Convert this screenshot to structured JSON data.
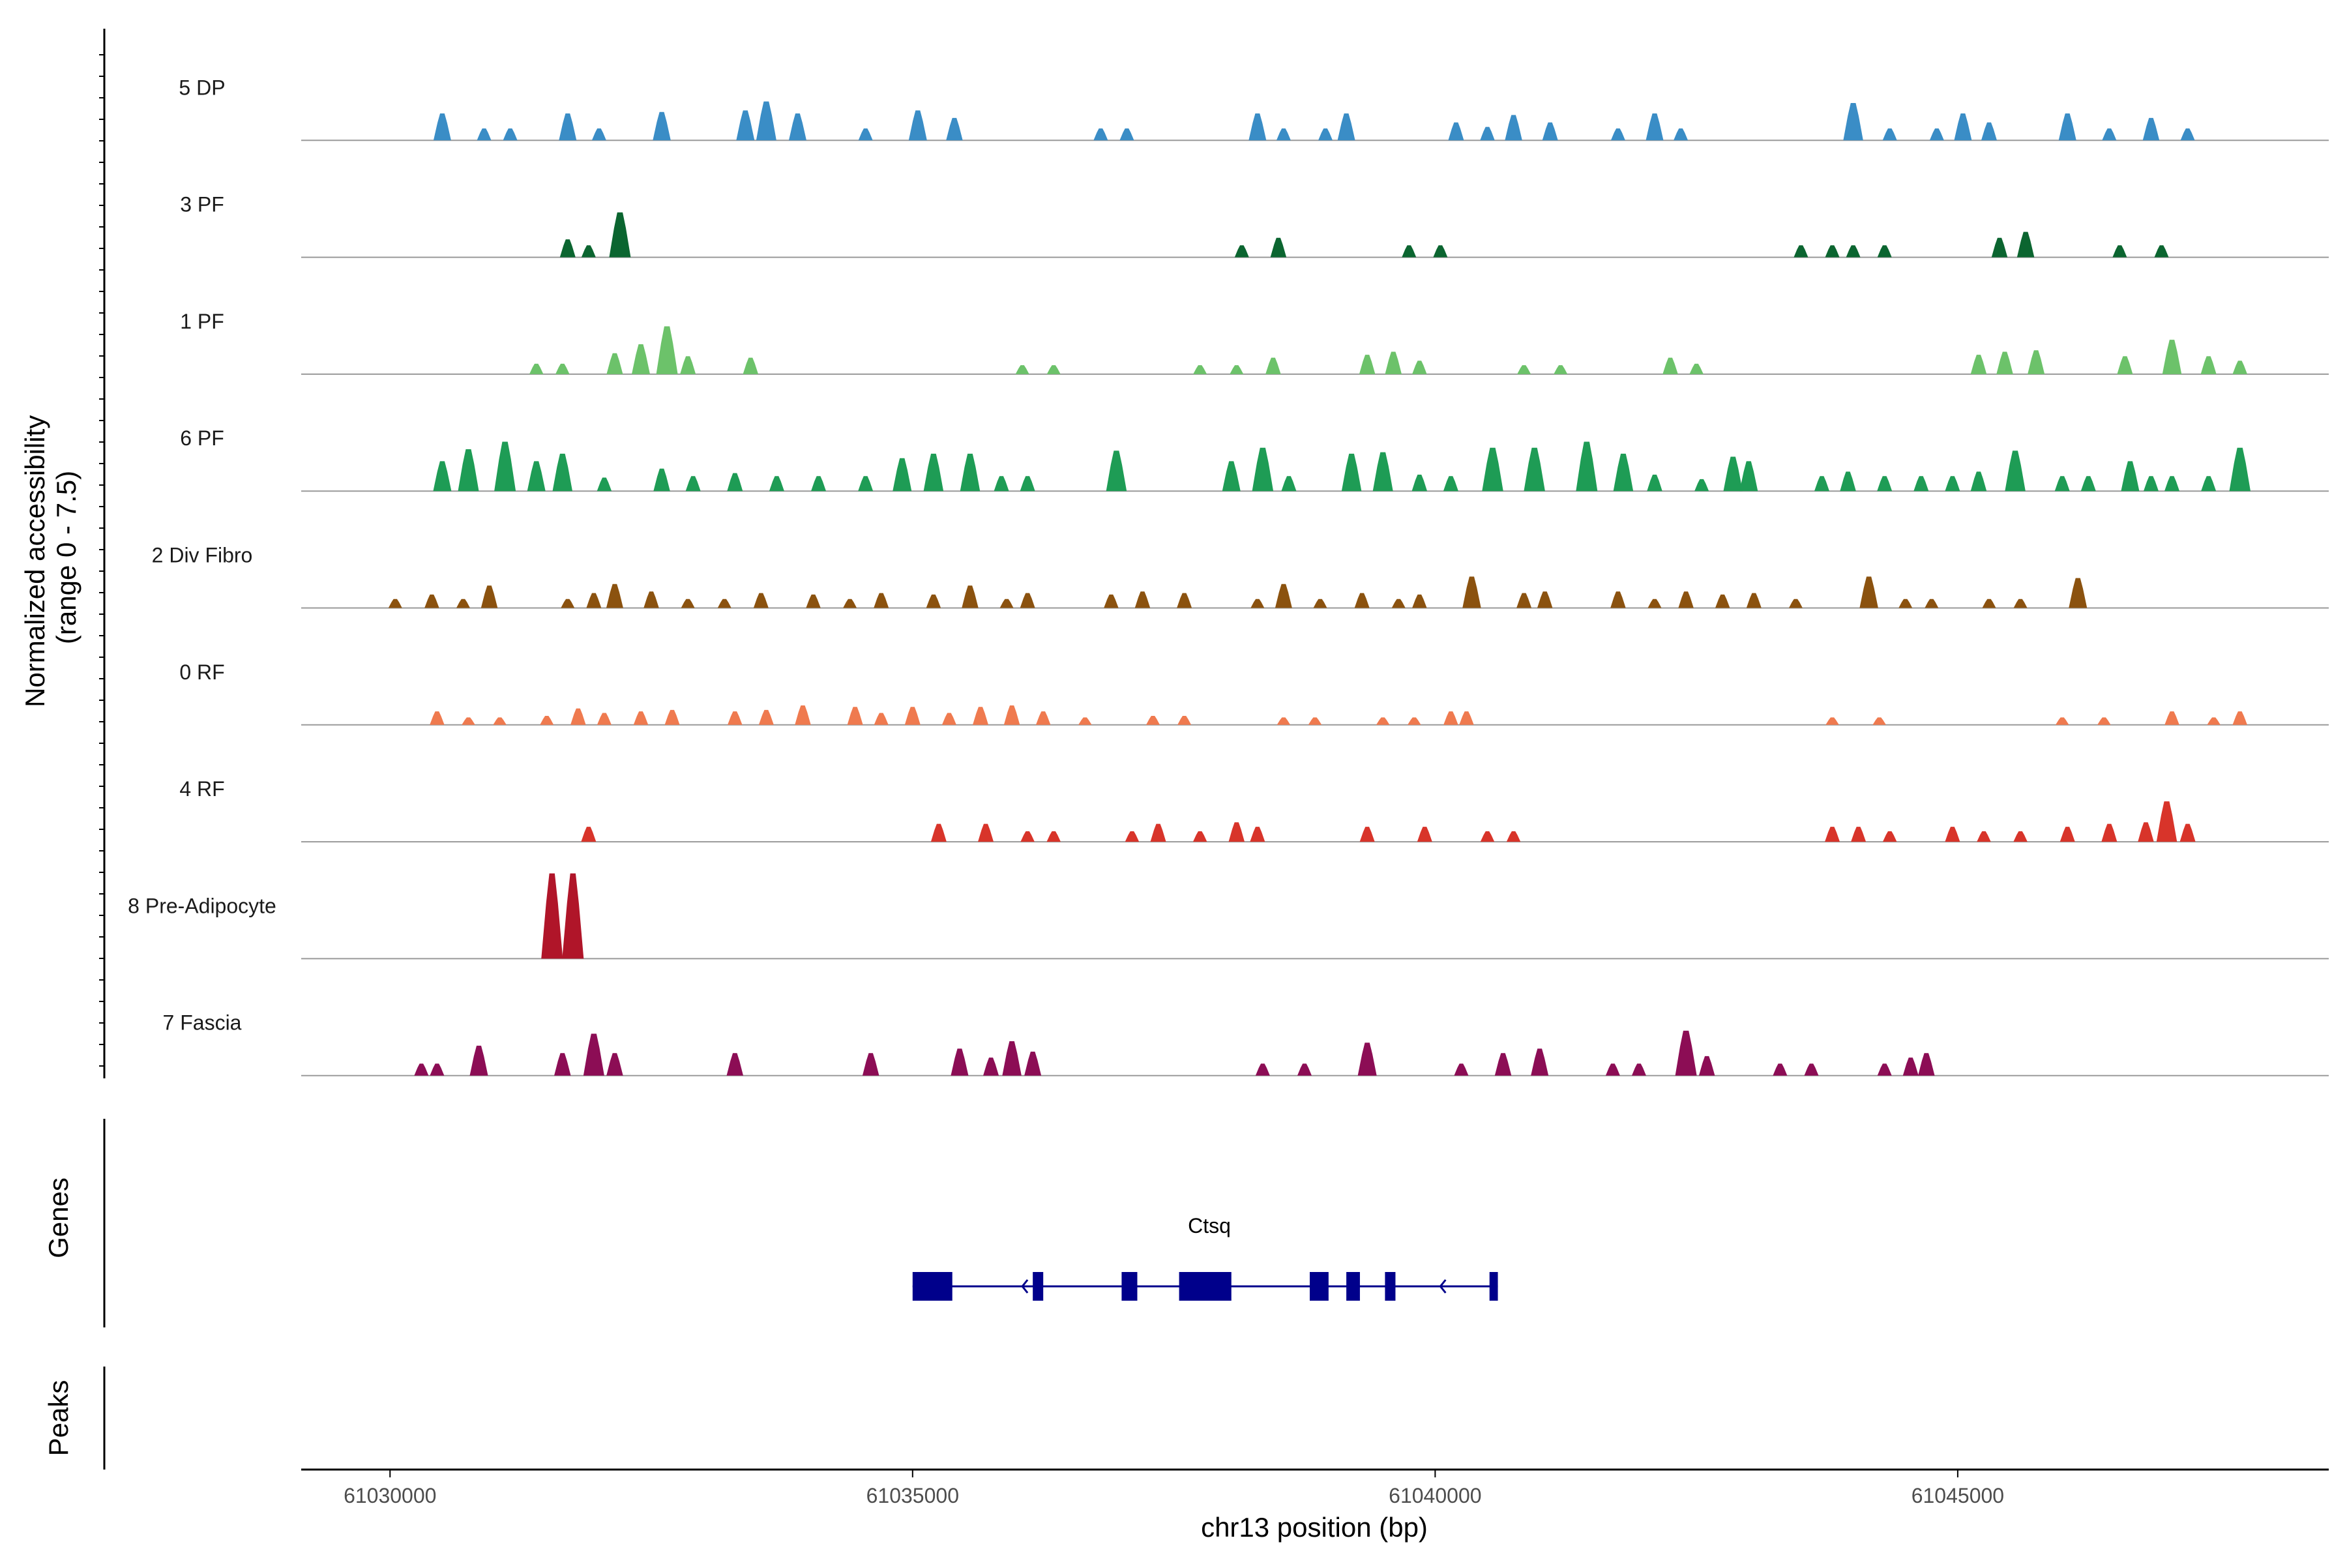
{
  "colors": {
    "5 DP": "#3a8dc6",
    "3 PF": "#0b6530",
    "1 PF": "#6cc26a",
    "6 PF": "#1e9c55",
    "2 Div Fibro": "#8b520f",
    "0 RF": "#ef7a4f",
    "4 RF": "#d8342a",
    "8 Pre-Adipocyte": "#b01529",
    "7 Fascia": "#8c0d55",
    "gene": "#00008b",
    "baseline": "#9a9a9a",
    "axis": "#000000"
  },
  "chart_data": {
    "type": "area",
    "title": "",
    "ylabel_line1": "Normalized accessibility",
    "ylabel_line2": "(range 0 - 7.5)",
    "ylim": [
      0,
      7.5
    ],
    "xlabel": "chr13 position (bp)",
    "xlim": [
      61029150,
      61048550
    ],
    "xticks": [
      61030000,
      61035000,
      61040000,
      61045000
    ],
    "xtick_labels": [
      "61030000",
      "61035000",
      "61040000",
      "61045000"
    ],
    "panel_labels": {
      "genes": "Genes",
      "peaks": "Peaks"
    },
    "tracks": [
      {
        "name": "5 DP",
        "peaks": [
          [
            61030500,
            1.8
          ],
          [
            61030900,
            0.8
          ],
          [
            61031150,
            0.8
          ],
          [
            61031700,
            1.8
          ],
          [
            61032000,
            0.8
          ],
          [
            61032600,
            1.9
          ],
          [
            61033400,
            2.0
          ],
          [
            61033600,
            2.6
          ],
          [
            61033900,
            1.8
          ],
          [
            61034550,
            0.8
          ],
          [
            61035050,
            2.0
          ],
          [
            61035400,
            1.5
          ],
          [
            61036800,
            0.8
          ],
          [
            61037050,
            0.8
          ],
          [
            61038300,
            1.8
          ],
          [
            61038550,
            0.8
          ],
          [
            61038950,
            0.8
          ],
          [
            61039150,
            1.8
          ],
          [
            61040200,
            1.2
          ],
          [
            61040500,
            0.9
          ],
          [
            61040750,
            1.7
          ],
          [
            61041100,
            1.2
          ],
          [
            61041750,
            0.8
          ],
          [
            61042100,
            1.8
          ],
          [
            61042350,
            0.8
          ],
          [
            61044000,
            2.5
          ],
          [
            61044350,
            0.8
          ],
          [
            61044800,
            0.8
          ],
          [
            61045050,
            1.8
          ],
          [
            61045300,
            1.2
          ],
          [
            61046050,
            1.8
          ],
          [
            61046450,
            0.8
          ],
          [
            61046850,
            1.5
          ],
          [
            61047200,
            0.8
          ]
        ]
      },
      {
        "name": "3 PF",
        "peaks": [
          [
            61031700,
            1.2
          ],
          [
            61031900,
            0.8
          ],
          [
            61032200,
            3.0
          ],
          [
            61038150,
            0.8
          ],
          [
            61038500,
            1.3
          ],
          [
            61039750,
            0.8
          ],
          [
            61040050,
            0.8
          ],
          [
            61043500,
            0.8
          ],
          [
            61043800,
            0.8
          ],
          [
            61044000,
            0.8
          ],
          [
            61044300,
            0.8
          ],
          [
            61045400,
            1.3
          ],
          [
            61045650,
            1.7
          ],
          [
            61046550,
            0.8
          ],
          [
            61046950,
            0.8
          ]
        ]
      },
      {
        "name": "1 PF",
        "peaks": [
          [
            61031400,
            0.7
          ],
          [
            61031650,
            0.7
          ],
          [
            61032150,
            1.4
          ],
          [
            61032400,
            2.0
          ],
          [
            61032650,
            3.2
          ],
          [
            61032850,
            1.2
          ],
          [
            61033450,
            1.1
          ],
          [
            61036050,
            0.6
          ],
          [
            61036350,
            0.6
          ],
          [
            61037750,
            0.6
          ],
          [
            61038100,
            0.6
          ],
          [
            61038450,
            1.1
          ],
          [
            61039350,
            1.3
          ],
          [
            61039600,
            1.5
          ],
          [
            61039850,
            0.9
          ],
          [
            61040850,
            0.6
          ],
          [
            61041200,
            0.6
          ],
          [
            61042250,
            1.1
          ],
          [
            61042500,
            0.7
          ],
          [
            61045200,
            1.3
          ],
          [
            61045450,
            1.5
          ],
          [
            61045750,
            1.6
          ],
          [
            61046600,
            1.2
          ],
          [
            61047050,
            2.3
          ],
          [
            61047400,
            1.2
          ],
          [
            61047700,
            0.9
          ]
        ]
      },
      {
        "name": "6 PF",
        "peaks": [
          [
            61030500,
            2.0
          ],
          [
            61030750,
            2.8
          ],
          [
            61031100,
            3.3
          ],
          [
            61031400,
            2.0
          ],
          [
            61031650,
            2.5
          ],
          [
            61032050,
            0.9
          ],
          [
            61032600,
            1.5
          ],
          [
            61032900,
            1.0
          ],
          [
            61033300,
            1.2
          ],
          [
            61033700,
            1.0
          ],
          [
            61034100,
            1.0
          ],
          [
            61034550,
            1.0
          ],
          [
            61034900,
            2.2
          ],
          [
            61035200,
            2.5
          ],
          [
            61035550,
            2.5
          ],
          [
            61035850,
            1.0
          ],
          [
            61036100,
            1.0
          ],
          [
            61036950,
            2.7
          ],
          [
            61038050,
            2.0
          ],
          [
            61038350,
            2.9
          ],
          [
            61038600,
            1.0
          ],
          [
            61039200,
            2.5
          ],
          [
            61039500,
            2.6
          ],
          [
            61039850,
            1.1
          ],
          [
            61040150,
            1.0
          ],
          [
            61040550,
            2.9
          ],
          [
            61040950,
            2.9
          ],
          [
            61041450,
            3.3
          ],
          [
            61041800,
            2.5
          ],
          [
            61042100,
            1.1
          ],
          [
            61042550,
            0.8
          ],
          [
            61042850,
            2.3
          ],
          [
            61043000,
            2.0
          ],
          [
            61043700,
            1.0
          ],
          [
            61043950,
            1.3
          ],
          [
            61044300,
            1.0
          ],
          [
            61044650,
            1.0
          ],
          [
            61044950,
            1.0
          ],
          [
            61045200,
            1.3
          ],
          [
            61045550,
            2.7
          ],
          [
            61046000,
            1.0
          ],
          [
            61046250,
            1.0
          ],
          [
            61046650,
            2.0
          ],
          [
            61046850,
            1.0
          ],
          [
            61047050,
            1.0
          ],
          [
            61047400,
            1.0
          ],
          [
            61047700,
            2.9
          ]
        ]
      },
      {
        "name": "2 Div Fibro",
        "peaks": [
          [
            61030050,
            0.6
          ],
          [
            61030400,
            0.9
          ],
          [
            61030700,
            0.6
          ],
          [
            61030950,
            1.5
          ],
          [
            61031700,
            0.6
          ],
          [
            61031950,
            1.0
          ],
          [
            61032150,
            1.6
          ],
          [
            61032500,
            1.1
          ],
          [
            61032850,
            0.6
          ],
          [
            61033200,
            0.6
          ],
          [
            61033550,
            1.0
          ],
          [
            61034050,
            0.9
          ],
          [
            61034400,
            0.6
          ],
          [
            61034700,
            1.0
          ],
          [
            61035200,
            0.9
          ],
          [
            61035550,
            1.5
          ],
          [
            61035900,
            0.6
          ],
          [
            61036100,
            1.0
          ],
          [
            61036900,
            0.9
          ],
          [
            61037200,
            1.1
          ],
          [
            61037600,
            1.0
          ],
          [
            61038300,
            0.6
          ],
          [
            61038550,
            1.6
          ],
          [
            61038900,
            0.6
          ],
          [
            61039300,
            1.0
          ],
          [
            61039650,
            0.6
          ],
          [
            61039850,
            0.9
          ],
          [
            61040350,
            2.1
          ],
          [
            61040850,
            1.0
          ],
          [
            61041050,
            1.1
          ],
          [
            61041750,
            1.1
          ],
          [
            61042100,
            0.6
          ],
          [
            61042400,
            1.1
          ],
          [
            61042750,
            0.9
          ],
          [
            61043050,
            1.0
          ],
          [
            61043450,
            0.6
          ],
          [
            61044150,
            2.1
          ],
          [
            61044500,
            0.6
          ],
          [
            61044750,
            0.6
          ],
          [
            61045300,
            0.6
          ],
          [
            61045600,
            0.6
          ],
          [
            61046150,
            2.0
          ]
        ]
      },
      {
        "name": "0 RF",
        "peaks": [
          [
            61030450,
            0.9
          ],
          [
            61030750,
            0.5
          ],
          [
            61031050,
            0.5
          ],
          [
            61031500,
            0.6
          ],
          [
            61031800,
            1.1
          ],
          [
            61032050,
            0.8
          ],
          [
            61032400,
            0.9
          ],
          [
            61032700,
            1.0
          ],
          [
            61033300,
            0.9
          ],
          [
            61033600,
            1.0
          ],
          [
            61033950,
            1.3
          ],
          [
            61034450,
            1.2
          ],
          [
            61034700,
            0.8
          ],
          [
            61035000,
            1.2
          ],
          [
            61035350,
            0.8
          ],
          [
            61035650,
            1.2
          ],
          [
            61035950,
            1.3
          ],
          [
            61036250,
            0.9
          ],
          [
            61036650,
            0.5
          ],
          [
            61037300,
            0.6
          ],
          [
            61037600,
            0.6
          ],
          [
            61038550,
            0.5
          ],
          [
            61038850,
            0.5
          ],
          [
            61039500,
            0.5
          ],
          [
            61039800,
            0.5
          ],
          [
            61040150,
            0.9
          ],
          [
            61040300,
            0.9
          ],
          [
            61043800,
            0.5
          ],
          [
            61044250,
            0.5
          ],
          [
            61046000,
            0.5
          ],
          [
            61046400,
            0.5
          ],
          [
            61047050,
            0.9
          ],
          [
            61047450,
            0.5
          ],
          [
            61047700,
            0.9
          ]
        ]
      },
      {
        "name": "4 RF",
        "peaks": [
          [
            61031900,
            1.0
          ],
          [
            61035250,
            1.2
          ],
          [
            61035700,
            1.2
          ],
          [
            61036100,
            0.7
          ],
          [
            61036350,
            0.7
          ],
          [
            61037100,
            0.7
          ],
          [
            61037350,
            1.2
          ],
          [
            61037750,
            0.7
          ],
          [
            61038100,
            1.3
          ],
          [
            61038300,
            1.0
          ],
          [
            61039350,
            1.0
          ],
          [
            61039900,
            1.0
          ],
          [
            61040500,
            0.7
          ],
          [
            61040750,
            0.7
          ],
          [
            61043800,
            1.0
          ],
          [
            61044050,
            1.0
          ],
          [
            61044350,
            0.7
          ],
          [
            61044950,
            1.0
          ],
          [
            61045250,
            0.7
          ],
          [
            61045600,
            0.7
          ],
          [
            61046050,
            1.0
          ],
          [
            61046450,
            1.2
          ],
          [
            61046800,
            1.3
          ],
          [
            61047000,
            2.7
          ],
          [
            61047200,
            1.2
          ]
        ]
      },
      {
        "name": "8 Pre-Adipocyte",
        "peaks": [
          [
            61031550,
            5.7
          ],
          [
            61031750,
            5.7
          ]
        ]
      },
      {
        "name": "7 Fascia",
        "peaks": [
          [
            61030300,
            0.8
          ],
          [
            61030450,
            0.8
          ],
          [
            61030850,
            2.0
          ],
          [
            61031650,
            1.5
          ],
          [
            61031950,
            2.8
          ],
          [
            61032150,
            1.5
          ],
          [
            61033300,
            1.5
          ],
          [
            61034600,
            1.5
          ],
          [
            61035450,
            1.8
          ],
          [
            61035750,
            1.2
          ],
          [
            61035950,
            2.3
          ],
          [
            61036150,
            1.6
          ],
          [
            61038350,
            0.8
          ],
          [
            61038750,
            0.8
          ],
          [
            61039350,
            2.2
          ],
          [
            61040250,
            0.8
          ],
          [
            61040650,
            1.5
          ],
          [
            61041000,
            1.8
          ],
          [
            61041700,
            0.8
          ],
          [
            61041950,
            0.8
          ],
          [
            61042400,
            3.0
          ],
          [
            61042600,
            1.3
          ],
          [
            61043300,
            0.8
          ],
          [
            61043600,
            0.8
          ],
          [
            61044300,
            0.8
          ],
          [
            61044550,
            1.2
          ],
          [
            61044700,
            1.5
          ]
        ]
      }
    ],
    "gene": {
      "name": "Ctsq",
      "strand": "-",
      "start": 61035000,
      "end": 61040600,
      "exons": [
        [
          61035000,
          61035380
        ],
        [
          61036150,
          61036250
        ],
        [
          61037000,
          61037150
        ],
        [
          61037550,
          61038050
        ],
        [
          61038800,
          61038980
        ],
        [
          61039150,
          61039280
        ],
        [
          61039520,
          61039620
        ],
        [
          61040520,
          61040600
        ]
      ]
    }
  }
}
